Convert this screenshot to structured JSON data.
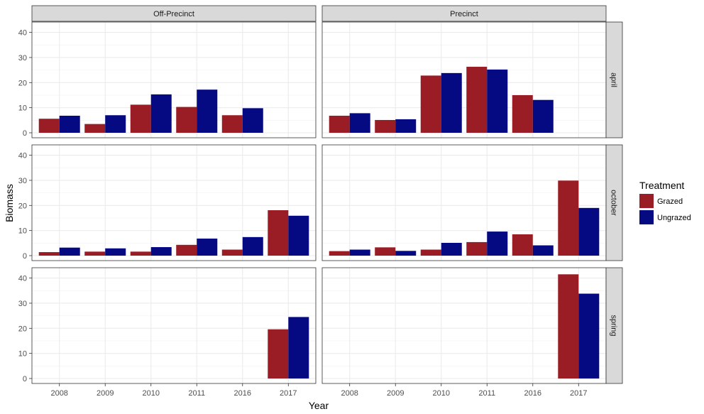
{
  "chart_data": {
    "type": "bar",
    "xlabel": "Year",
    "ylabel": "Biomass",
    "ylim": [
      0,
      43
    ],
    "yticks": [
      0,
      10,
      20,
      30,
      40
    ],
    "categories": [
      "2008",
      "2009",
      "2010",
      "2011",
      "2016",
      "2017"
    ],
    "columns": [
      "Off-Precinct",
      "Precinct"
    ],
    "rows": [
      "april",
      "october",
      "spring"
    ],
    "legend": {
      "title": "Treatment",
      "position": "right",
      "entries": [
        {
          "name": "Grazed",
          "color": "#9A1C24"
        },
        {
          "name": "Ungrazed",
          "color": "#050A82"
        }
      ]
    },
    "grid": true,
    "panels": [
      {
        "column": "Off-Precinct",
        "row": "april",
        "series": [
          {
            "name": "Grazed",
            "values": [
              5.6,
              3.5,
              11.2,
              10.3,
              7.0,
              null
            ]
          },
          {
            "name": "Ungrazed",
            "values": [
              6.8,
              7.0,
              15.3,
              17.2,
              9.8,
              null
            ]
          }
        ]
      },
      {
        "column": "Precinct",
        "row": "april",
        "series": [
          {
            "name": "Grazed",
            "values": [
              6.8,
              5.1,
              22.8,
              26.3,
              15.0,
              null
            ]
          },
          {
            "name": "Ungrazed",
            "values": [
              7.8,
              5.4,
              23.8,
              25.2,
              13.1,
              null
            ]
          }
        ]
      },
      {
        "column": "Off-Precinct",
        "row": "october",
        "series": [
          {
            "name": "Grazed",
            "values": [
              1.4,
              1.6,
              1.6,
              4.3,
              2.4,
              18.1
            ]
          },
          {
            "name": "Ungrazed",
            "values": [
              3.2,
              2.9,
              3.4,
              6.8,
              7.4,
              15.9
            ]
          }
        ]
      },
      {
        "column": "Precinct",
        "row": "october",
        "series": [
          {
            "name": "Grazed",
            "values": [
              1.8,
              3.3,
              2.4,
              5.4,
              8.5,
              29.9
            ]
          },
          {
            "name": "Ungrazed",
            "values": [
              2.4,
              1.9,
              5.1,
              9.6,
              4.1,
              19.0
            ]
          }
        ]
      },
      {
        "column": "Off-Precinct",
        "row": "spring",
        "series": [
          {
            "name": "Grazed",
            "values": [
              null,
              null,
              null,
              null,
              null,
              19.6
            ]
          },
          {
            "name": "Ungrazed",
            "values": [
              null,
              null,
              null,
              null,
              null,
              24.5
            ]
          }
        ]
      },
      {
        "column": "Precinct",
        "row": "spring",
        "series": [
          {
            "name": "Grazed",
            "values": [
              null,
              null,
              null,
              null,
              null,
              41.5
            ]
          },
          {
            "name": "Ungrazed",
            "values": [
              null,
              null,
              null,
              null,
              null,
              33.8
            ]
          }
        ]
      }
    ]
  }
}
